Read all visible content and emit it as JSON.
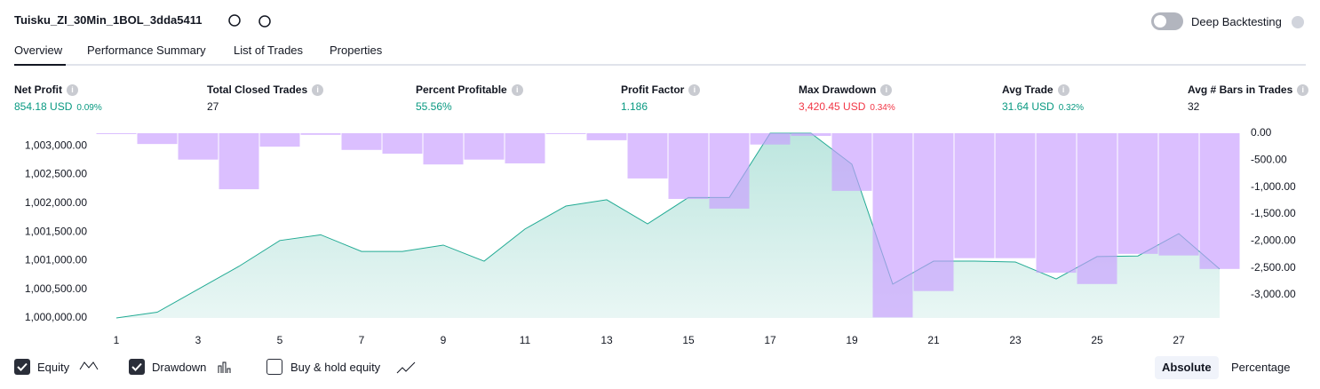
{
  "header": {
    "title": "Tuisku_ZI_30Min_1BOL_3dda5411",
    "deep_backtesting": "Deep Backtesting"
  },
  "tabs": [
    "Overview",
    "Performance Summary",
    "List of Trades",
    "Properties"
  ],
  "metrics": [
    {
      "label": "Net Profit",
      "value": "854.18 USD",
      "percent": "0.09%",
      "color": "#089981"
    },
    {
      "label": "Total Closed Trades",
      "value": "27",
      "color": "#131722"
    },
    {
      "label": "Percent Profitable",
      "value": "55.56%",
      "color": "#089981"
    },
    {
      "label": "Profit Factor",
      "value": "1.186",
      "color": "#089981"
    },
    {
      "label": "Max Drawdown",
      "value": "3,420.45 USD",
      "percent": "0.34%",
      "color": "#f23645"
    },
    {
      "label": "Avg Trade",
      "value": "31.64 USD",
      "percent": "0.32%",
      "color": "#089981"
    },
    {
      "label": "Avg # Bars in Trades",
      "value": "32",
      "color": "#131722"
    }
  ],
  "chart_data": {
    "type": "combo",
    "categories": [
      1,
      null,
      3,
      null,
      5,
      null,
      7,
      null,
      9,
      null,
      11,
      null,
      13,
      null,
      15,
      null,
      17,
      null,
      19,
      null,
      21,
      null,
      23,
      null,
      25,
      null,
      27,
      null
    ],
    "series": [
      {
        "name": "Equity",
        "type": "area",
        "color": "#22ab94",
        "values": [
          1000000,
          1000100,
          1000500,
          1000900,
          1001350,
          1001450,
          1001160,
          1001160,
          1001270,
          1000990,
          1001550,
          1001950,
          1002060,
          1001640,
          1002100,
          1002100,
          1003220,
          1003220,
          1002680,
          1000590,
          1000990,
          1000990,
          1000975,
          1000680,
          1001070,
          1001080,
          1001470,
          1000854.18
        ]
      },
      {
        "name": "Drawdown",
        "type": "bar",
        "axis": "y2",
        "color": "#c89cff",
        "values": [
          -5,
          -200,
          -490,
          -1040,
          -250,
          -30,
          -310,
          -380,
          -580,
          -490,
          -560,
          -15,
          -130,
          -840,
          -1220,
          -1400,
          -210,
          -50,
          -1070,
          -3420.45,
          -2930,
          -2320,
          -2320,
          -2590,
          -2800,
          -2240,
          -2270,
          -2520
        ]
      }
    ],
    "ylim": [
      1000000,
      1003220
    ],
    "yticks": [
      {
        "value": 1000000,
        "label": "1,000,000.00"
      },
      {
        "value": 1000500,
        "label": "1,000,500.00"
      },
      {
        "value": 1001000,
        "label": "1,001,000.00"
      },
      {
        "value": 1001500,
        "label": "1,001,500.00"
      },
      {
        "value": 1002000,
        "label": "1,002,000.00"
      },
      {
        "value": 1002500,
        "label": "1,002,500.00"
      },
      {
        "value": 1003000,
        "label": "1,003,000.00"
      }
    ],
    "y2lim": [
      -3430,
      0
    ],
    "y2ticks": [
      {
        "value": 0,
        "label": "0.00"
      },
      {
        "value": -500,
        "label": "-500.00"
      },
      {
        "value": -1000,
        "label": "-1,000.00"
      },
      {
        "value": -1500,
        "label": "-1,500.00"
      },
      {
        "value": -2000,
        "label": "-2,000.00"
      },
      {
        "value": -2500,
        "label": "-2,500.00"
      },
      {
        "value": -3000,
        "label": "-3,000.00"
      }
    ],
    "grid": false
  },
  "controls": {
    "buy_hold": "Buy & hold equity",
    "modes": [
      "Absolute",
      "Percentage"
    ]
  }
}
